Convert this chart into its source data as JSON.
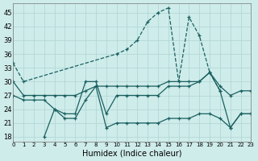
{
  "xlabel": "Humidex (Indice chaleur)",
  "bg_color": "#ceecea",
  "grid_color": "#aed4d2",
  "line_color": "#1a6060",
  "xlim": [
    0,
    23
  ],
  "ylim": [
    17,
    47
  ],
  "yticks": [
    18,
    21,
    24,
    27,
    30,
    33,
    36,
    39,
    42,
    45
  ],
  "xticks": [
    0,
    1,
    2,
    3,
    4,
    5,
    6,
    7,
    8,
    9,
    10,
    11,
    12,
    13,
    14,
    15,
    16,
    17,
    18,
    19,
    20,
    21,
    22,
    23
  ],
  "line1_x": [
    0,
    1,
    10,
    11,
    12,
    13,
    14,
    15,
    16,
    17,
    18,
    19,
    20
  ],
  "line1_y": [
    34,
    30,
    36,
    37,
    39,
    43,
    45,
    46,
    30,
    44,
    40,
    32,
    28
  ],
  "line1_style": "--",
  "line2_x": [
    0,
    1,
    2,
    3,
    4,
    5,
    6,
    7,
    8,
    9,
    10,
    11,
    12,
    13,
    14,
    15,
    16,
    17,
    18,
    19,
    20,
    21,
    22,
    23
  ],
  "line2_y": [
    30,
    27,
    27,
    27,
    27,
    27,
    27,
    28,
    29,
    29,
    29,
    29,
    29,
    29,
    29,
    30,
    30,
    30,
    30,
    32,
    29,
    27,
    28,
    28
  ],
  "line2_style": "-",
  "line3_x": [
    0,
    1,
    2,
    3,
    4,
    5,
    6,
    7,
    8,
    9,
    10,
    11,
    12,
    13,
    14,
    15,
    16,
    17,
    18,
    19,
    20,
    21,
    22,
    23
  ],
  "line3_y": [
    27,
    26,
    26,
    26,
    24,
    23,
    23,
    30,
    30,
    23,
    27,
    27,
    27,
    27,
    27,
    29,
    29,
    29,
    30,
    32,
    28,
    20,
    23,
    23
  ],
  "line3_style": "-",
  "line4_x": [
    3,
    4,
    5,
    6,
    7,
    8,
    9,
    10,
    11,
    12,
    13,
    14,
    15,
    16,
    17,
    18,
    19,
    20,
    21,
    22,
    23
  ],
  "line4_y": [
    18,
    24,
    22,
    22,
    26,
    29,
    20,
    21,
    21,
    21,
    21,
    21,
    22,
    22,
    22,
    23,
    23,
    22,
    20,
    23,
    23
  ],
  "line4_style": "-"
}
